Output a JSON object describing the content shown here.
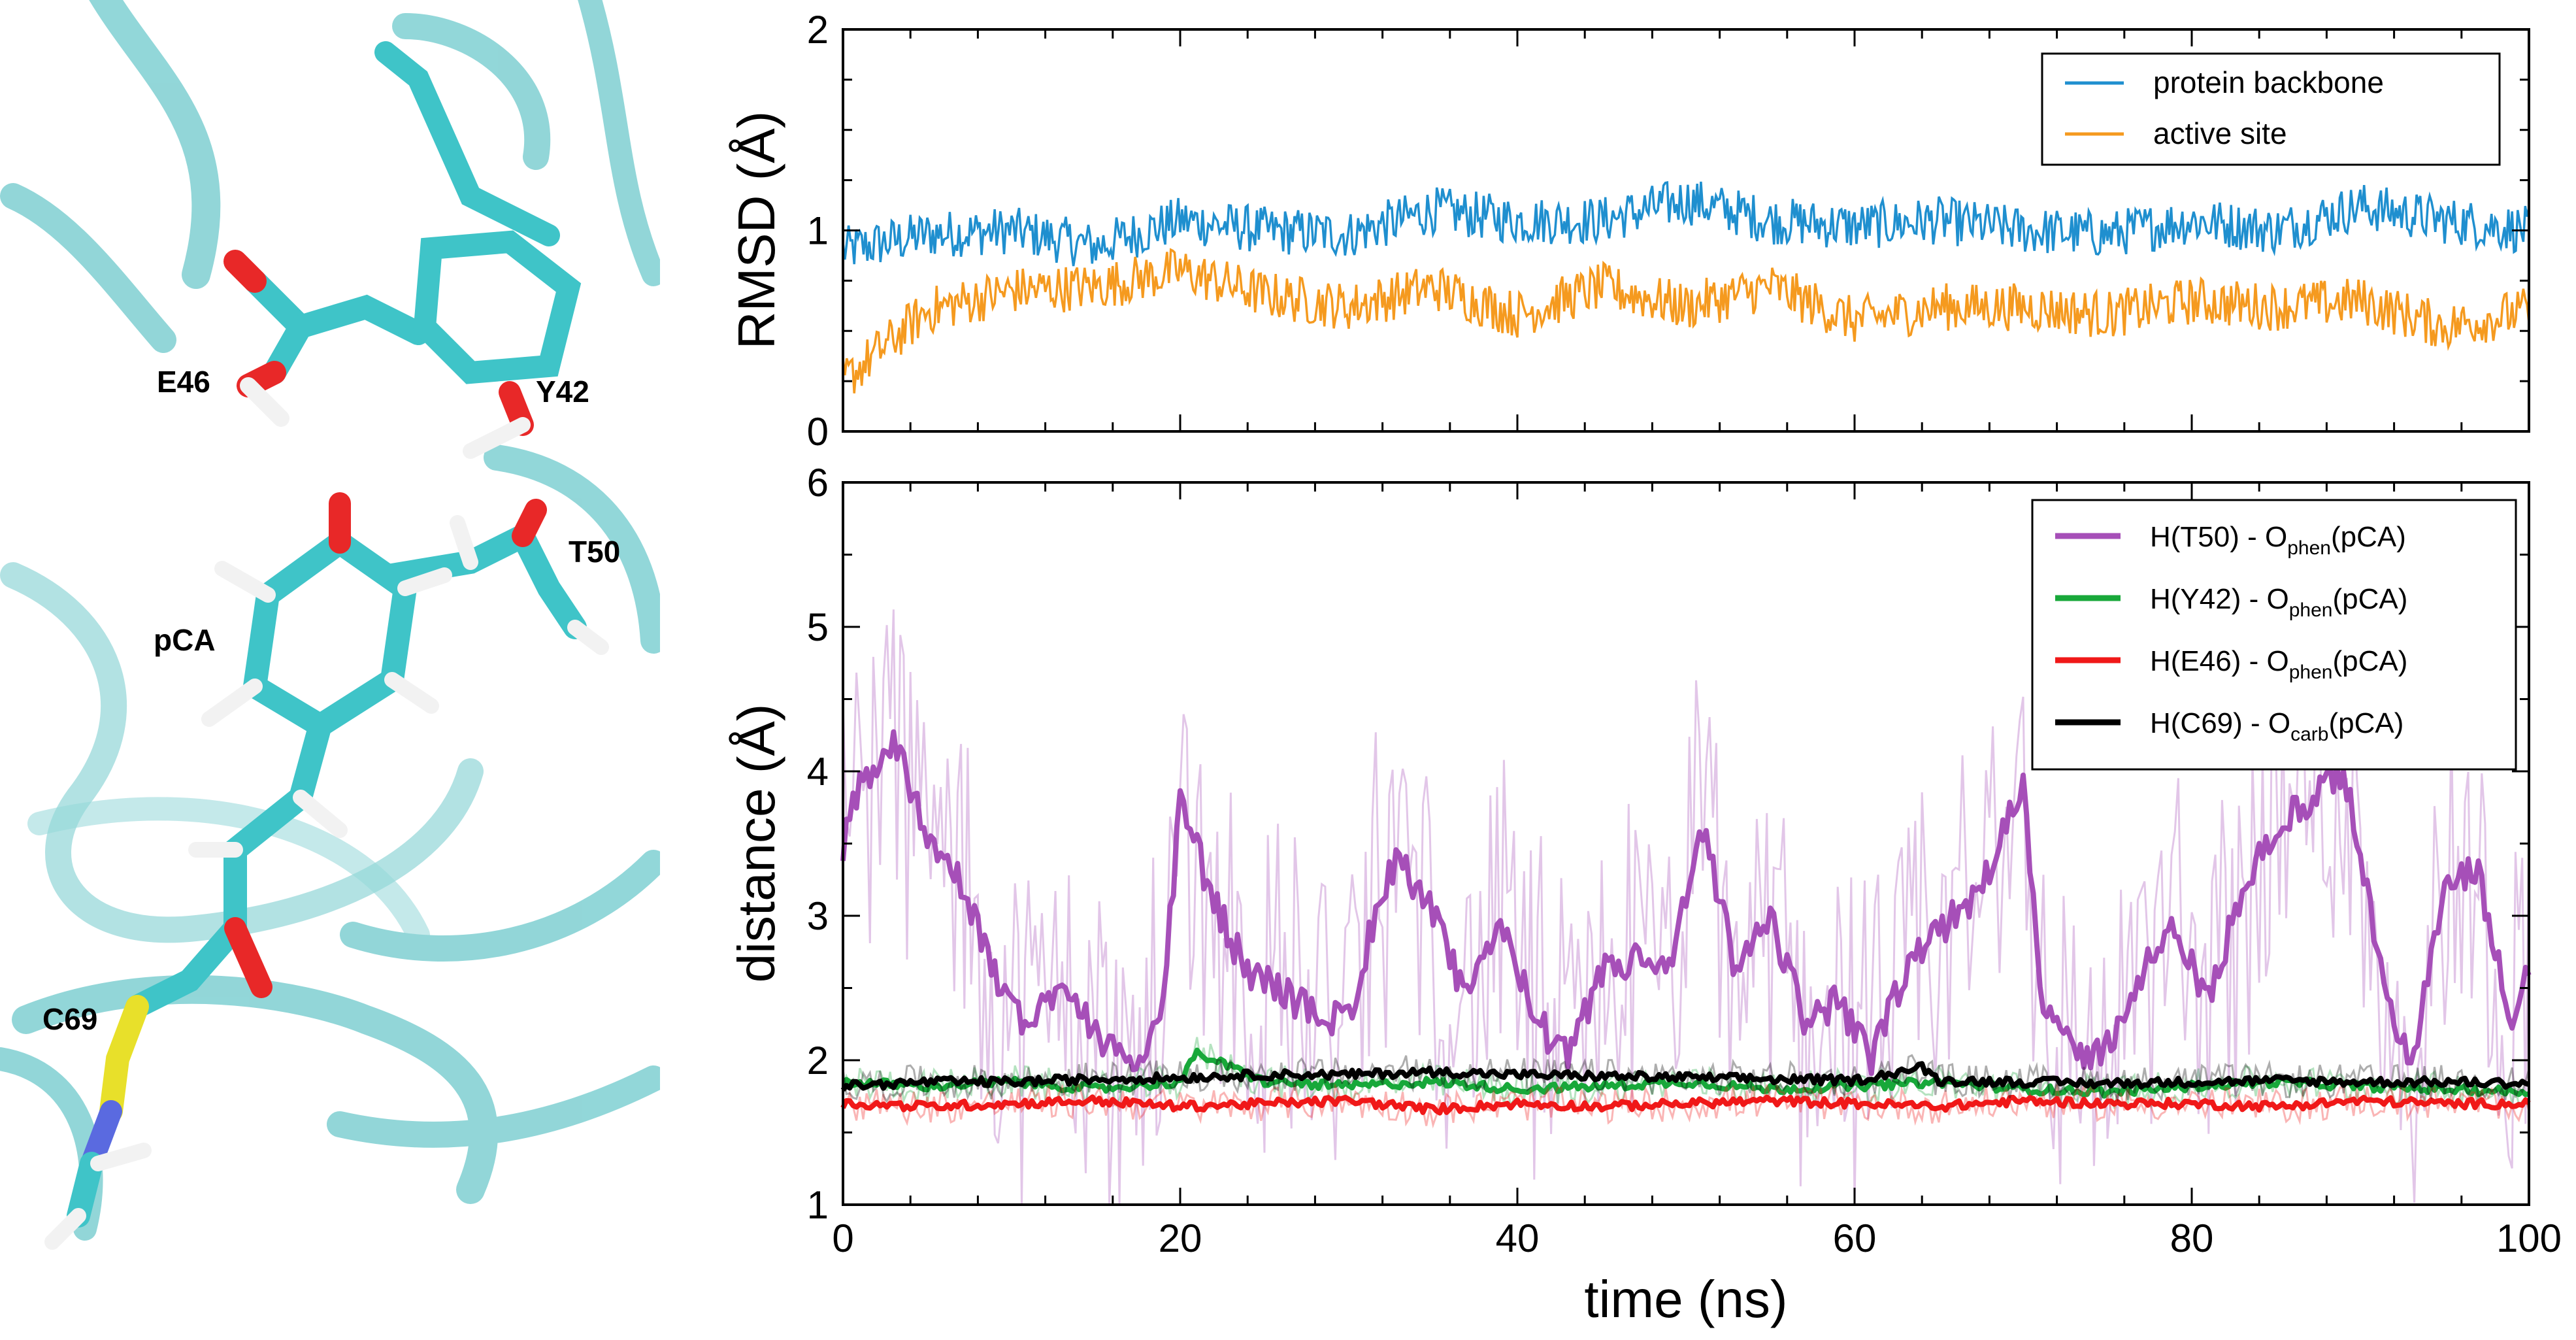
{
  "colors": {
    "backbone": "#1f8fcf",
    "active_site": "#f59a1f",
    "t50": "#a64fb8",
    "y42": "#18a83a",
    "e46": "#f01818",
    "c69": "#000000",
    "carbon": "#3fc4c8",
    "oxygen": "#e82828",
    "hydrogen": "#f2f2f2",
    "sulfur": "#e8e02a",
    "nitrogen": "#5a6ae0",
    "ribbon": "#7fd0d2"
  },
  "molecule": {
    "labels": [
      "E46",
      "Y42",
      "T50",
      "pCA",
      "C69"
    ]
  },
  "chart_data": [
    {
      "type": "line",
      "panel": "top",
      "ylabel": "RMSD (Å)",
      "xlabel": "",
      "xlim": [
        0,
        100
      ],
      "ylim": [
        0,
        2
      ],
      "yticks": [
        "0",
        "1",
        "2"
      ],
      "legend_position": "top-right",
      "series": [
        {
          "name": "protein backbone",
          "color_key": "backbone",
          "mean": 1.0,
          "amp": 0.1,
          "noise": 0.1,
          "x": [
            0,
            5,
            10,
            15,
            20,
            25,
            30,
            35,
            40,
            45,
            50,
            55,
            60,
            65,
            70,
            75,
            80,
            85,
            90,
            95,
            100
          ],
          "values": [
            0.9,
            0.98,
            1.0,
            0.92,
            1.05,
            1.0,
            0.98,
            1.1,
            1.05,
            1.05,
            1.15,
            1.05,
            1.02,
            1.05,
            1.0,
            0.98,
            1.05,
            1.0,
            1.12,
            1.05,
            1.0
          ]
        },
        {
          "name": "active site",
          "color_key": "active_site",
          "mean": 0.65,
          "amp": 0.1,
          "noise": 0.09,
          "x": [
            0,
            5,
            10,
            15,
            20,
            25,
            30,
            35,
            40,
            45,
            50,
            55,
            60,
            65,
            70,
            75,
            80,
            85,
            90,
            95,
            100
          ],
          "values": [
            0.25,
            0.6,
            0.7,
            0.72,
            0.8,
            0.68,
            0.62,
            0.72,
            0.58,
            0.72,
            0.62,
            0.72,
            0.55,
            0.62,
            0.62,
            0.58,
            0.65,
            0.62,
            0.65,
            0.52,
            0.6
          ]
        }
      ]
    },
    {
      "type": "line",
      "panel": "bottom",
      "xlabel": "time (ns)",
      "ylabel": "distance (Å)",
      "xlim": [
        0,
        100
      ],
      "ylim": [
        1,
        6
      ],
      "xticks": [
        "0",
        "20",
        "40",
        "60",
        "80",
        "100"
      ],
      "yticks": [
        "1",
        "2",
        "3",
        "4",
        "5",
        "6"
      ],
      "legend_position": "top-right",
      "series": [
        {
          "name": "H(T50) - O",
          "sub": "phen",
          "suffix": "(pCA)",
          "color_key": "t50",
          "x": [
            0,
            1,
            3,
            5,
            7,
            9,
            11,
            13,
            15,
            17,
            19,
            20,
            22,
            24,
            26,
            28,
            30,
            32,
            33,
            35,
            37,
            39,
            41,
            43,
            45,
            47,
            49,
            51,
            53,
            55,
            57,
            59,
            61,
            63,
            65,
            67,
            69,
            70,
            71,
            73,
            75,
            77,
            79,
            81,
            83,
            85,
            87,
            89,
            91,
            93,
            95,
            97,
            99,
            100
          ],
          "values": [
            3.5,
            3.9,
            4.2,
            3.6,
            3.2,
            2.6,
            2.2,
            2.6,
            2.2,
            1.9,
            2.4,
            3.8,
            3.1,
            2.6,
            2.5,
            2.3,
            2.3,
            3.2,
            3.4,
            3.0,
            2.4,
            3.0,
            2.3,
            2.0,
            2.6,
            2.7,
            2.6,
            3.6,
            2.6,
            3.0,
            2.3,
            2.4,
            2.0,
            2.6,
            2.9,
            3.1,
            3.6,
            4.0,
            2.5,
            2.0,
            2.1,
            2.6,
            2.9,
            2.4,
            3.2,
            3.6,
            3.8,
            4.0,
            2.8,
            1.9,
            3.2,
            3.3,
            2.2,
            2.7
          ]
        },
        {
          "name": "H(Y42) - O",
          "sub": "phen",
          "suffix": "(pCA)",
          "color_key": "y42",
          "x": [
            0,
            5,
            10,
            15,
            20,
            21,
            25,
            30,
            35,
            40,
            45,
            50,
            55,
            60,
            65,
            70,
            75,
            80,
            85,
            90,
            95,
            100
          ],
          "values": [
            1.85,
            1.82,
            1.85,
            1.8,
            1.85,
            2.05,
            1.85,
            1.82,
            1.85,
            1.8,
            1.82,
            1.85,
            1.8,
            1.82,
            1.85,
            1.8,
            1.78,
            1.82,
            1.85,
            1.82,
            1.8,
            1.78
          ]
        },
        {
          "name": "H(E46) - O",
          "sub": "phen",
          "suffix": "(pCA)",
          "color_key": "e46",
          "x": [
            0,
            5,
            10,
            15,
            20,
            25,
            30,
            35,
            40,
            45,
            50,
            55,
            60,
            65,
            70,
            75,
            80,
            85,
            90,
            95,
            100
          ],
          "values": [
            1.7,
            1.68,
            1.7,
            1.72,
            1.68,
            1.7,
            1.72,
            1.66,
            1.7,
            1.68,
            1.7,
            1.72,
            1.7,
            1.68,
            1.72,
            1.7,
            1.7,
            1.68,
            1.72,
            1.7,
            1.7
          ]
        },
        {
          "name": "H(C69) - O",
          "sub": "carb",
          "suffix": "(pCA)",
          "color_key": "c69",
          "x": [
            0,
            5,
            10,
            15,
            20,
            25,
            30,
            35,
            40,
            45,
            50,
            55,
            60,
            64,
            65,
            70,
            75,
            80,
            85,
            90,
            95,
            100
          ],
          "values": [
            1.82,
            1.85,
            1.85,
            1.87,
            1.88,
            1.9,
            1.9,
            1.92,
            1.9,
            1.89,
            1.88,
            1.87,
            1.86,
            1.95,
            1.86,
            1.85,
            1.84,
            1.85,
            1.86,
            1.85,
            1.85,
            1.84
          ]
        }
      ]
    }
  ]
}
